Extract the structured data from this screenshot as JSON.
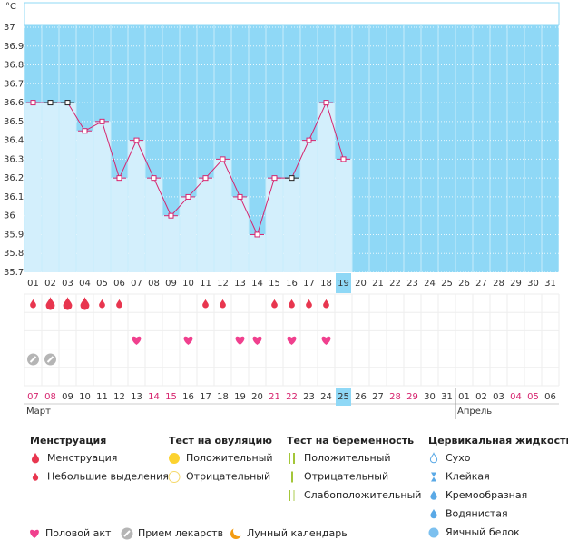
{
  "chart_data": {
    "type": "line",
    "y_unit": "°C",
    "categories": [
      "01",
      "02",
      "03",
      "04",
      "05",
      "06",
      "07",
      "08",
      "09",
      "10",
      "11",
      "12",
      "13",
      "14",
      "15",
      "16",
      "17",
      "18",
      "19",
      "20",
      "21",
      "22",
      "23",
      "24",
      "25",
      "26",
      "27",
      "28",
      "29",
      "30",
      "31"
    ],
    "values": [
      36.6,
      36.6,
      36.6,
      36.45,
      36.5,
      36.2,
      36.4,
      36.2,
      36.0,
      36.1,
      36.2,
      36.3,
      36.1,
      35.9,
      36.2,
      36.2,
      36.4,
      36.6,
      36.3,
      null,
      null,
      null,
      null,
      null,
      null,
      null,
      null,
      null,
      null,
      null,
      null
    ],
    "point_colors": [
      "#d6246e",
      "#222222",
      "#222222",
      "#d6246e",
      "#d6246e",
      "#d6246e",
      "#d6246e",
      "#d6246e",
      "#d6246e",
      "#d6246e",
      "#d6246e",
      "#d6246e",
      "#d6246e",
      "#d6246e",
      "#d6246e",
      "#222222",
      "#d6246e",
      "#d6246e",
      "#d6246e"
    ],
    "highlight": "19",
    "ylim": [
      35.7,
      37
    ],
    "yticks": [
      35.7,
      35.8,
      35.9,
      36,
      36.1,
      36.2,
      36.3,
      36.4,
      36.5,
      36.6,
      36.7,
      36.8,
      36.9,
      37
    ],
    "colors": {
      "line": "#d6246e",
      "bar": "#d3effc",
      "background": "#8fd8f6",
      "highlight": "#8fd8f6"
    },
    "menstruation": [
      "light",
      "heavy",
      "heavy",
      "heavy",
      "light",
      "light",
      null,
      null,
      null,
      null,
      "light",
      "light",
      null,
      null,
      "light",
      "light",
      "light",
      "light",
      null,
      null,
      null,
      null,
      null,
      null,
      null,
      null,
      null,
      null,
      null,
      null,
      null
    ],
    "intercourse": [
      false,
      false,
      false,
      false,
      false,
      false,
      true,
      false,
      false,
      true,
      false,
      false,
      true,
      true,
      false,
      true,
      false,
      true,
      false,
      false,
      false,
      false,
      false,
      false,
      false,
      false,
      false,
      false,
      false,
      false,
      false
    ],
    "medication": [
      true,
      true,
      false,
      false,
      false,
      false,
      false,
      false,
      false,
      false,
      false,
      false,
      false,
      false,
      false,
      false,
      false,
      false,
      false,
      false,
      false,
      false,
      false,
      false,
      false,
      false,
      false,
      false,
      false,
      false,
      false
    ],
    "calendar": {
      "dates": [
        "07",
        "08",
        "09",
        "10",
        "11",
        "12",
        "13",
        "14",
        "15",
        "16",
        "17",
        "18",
        "19",
        "20",
        "21",
        "22",
        "23",
        "24",
        "25",
        "26",
        "27",
        "28",
        "29",
        "30",
        "31",
        "01",
        "02",
        "03",
        "04",
        "05",
        "06"
      ],
      "weekend": [
        true,
        true,
        false,
        false,
        false,
        false,
        false,
        true,
        true,
        false,
        false,
        false,
        false,
        false,
        true,
        true,
        false,
        false,
        false,
        false,
        false,
        true,
        true,
        false,
        false,
        false,
        false,
        false,
        true,
        true,
        false
      ],
      "weekend_color": "#d6246e",
      "highlight": "25",
      "months": [
        {
          "label": "Март",
          "start": 0
        },
        {
          "label": "Апрель",
          "start": 25
        }
      ]
    }
  },
  "legend": {
    "sections": [
      {
        "title": "Менструация",
        "items": [
          "Менструация",
          "Небольшие выделения"
        ]
      },
      {
        "title": "Тест на овуляцию",
        "items": [
          "Положительный",
          "Отрицательный"
        ]
      },
      {
        "title": "Тест на беременность",
        "items": [
          "Положительный",
          "Отрицательный",
          "Слабоположительный"
        ]
      },
      {
        "title": "Цервикальная жидкость",
        "items": [
          "Сухо",
          "Клейкая",
          "Кремообразная",
          "Водянистая",
          "Яичный белок"
        ]
      }
    ],
    "bottom": [
      "Половой акт",
      "Прием лекарств",
      "Лунный календарь"
    ]
  }
}
